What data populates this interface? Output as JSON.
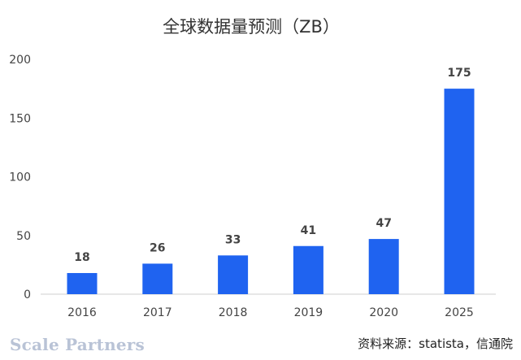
{
  "watermark": "Scale Partners",
  "source": "资料来源：statista，信通院",
  "chart_data": {
    "type": "bar",
    "title": "全球数据量预测（ZB）",
    "categories": [
      "2016",
      "2017",
      "2018",
      "2019",
      "2020",
      "2025"
    ],
    "values": [
      18,
      26,
      33,
      41,
      47,
      175
    ],
    "data_labels": [
      "18",
      "26",
      "33",
      "41",
      "47",
      "175"
    ],
    "ylim": [
      0,
      200
    ],
    "yticks": [
      0,
      50,
      100,
      150,
      200
    ],
    "xlabel": "",
    "ylabel": "",
    "grid": false,
    "bar_color": "#1f63f0"
  }
}
